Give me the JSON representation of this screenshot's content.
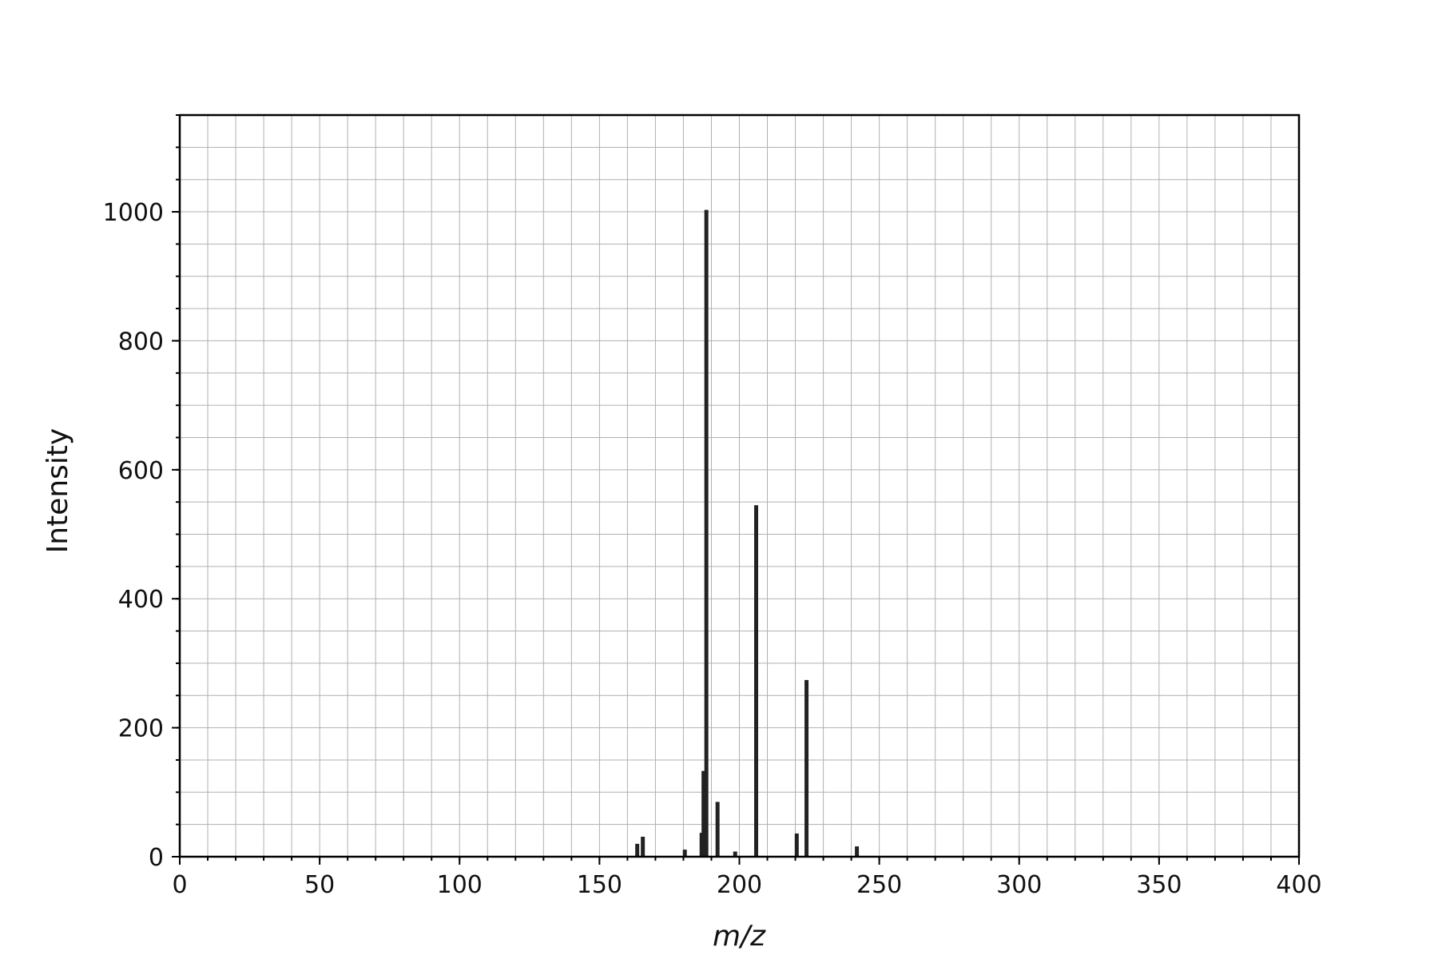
{
  "chart_data": {
    "type": "bar",
    "xlabel": "m/z",
    "ylabel": "Intensity",
    "xlim": [
      0,
      400
    ],
    "ylim": [
      0,
      1150
    ],
    "x_ticks": [
      0,
      50,
      100,
      150,
      200,
      250,
      300,
      350,
      400
    ],
    "y_ticks": [
      0,
      200,
      400,
      600,
      800,
      1000
    ],
    "x_minor_step": 10,
    "y_minor_step": 50,
    "grid": "on",
    "bar_color": "#222222",
    "peaks": [
      {
        "x": 163.5,
        "y": 20
      },
      {
        "x": 165.5,
        "y": 31
      },
      {
        "x": 180.5,
        "y": 11
      },
      {
        "x": 186.5,
        "y": 37
      },
      {
        "x": 187.2,
        "y": 133
      },
      {
        "x": 188.2,
        "y": 1003
      },
      {
        "x": 192.2,
        "y": 85
      },
      {
        "x": 198.5,
        "y": 8
      },
      {
        "x": 206.0,
        "y": 545
      },
      {
        "x": 220.5,
        "y": 36
      },
      {
        "x": 224.0,
        "y": 274
      },
      {
        "x": 242.0,
        "y": 16
      }
    ]
  }
}
